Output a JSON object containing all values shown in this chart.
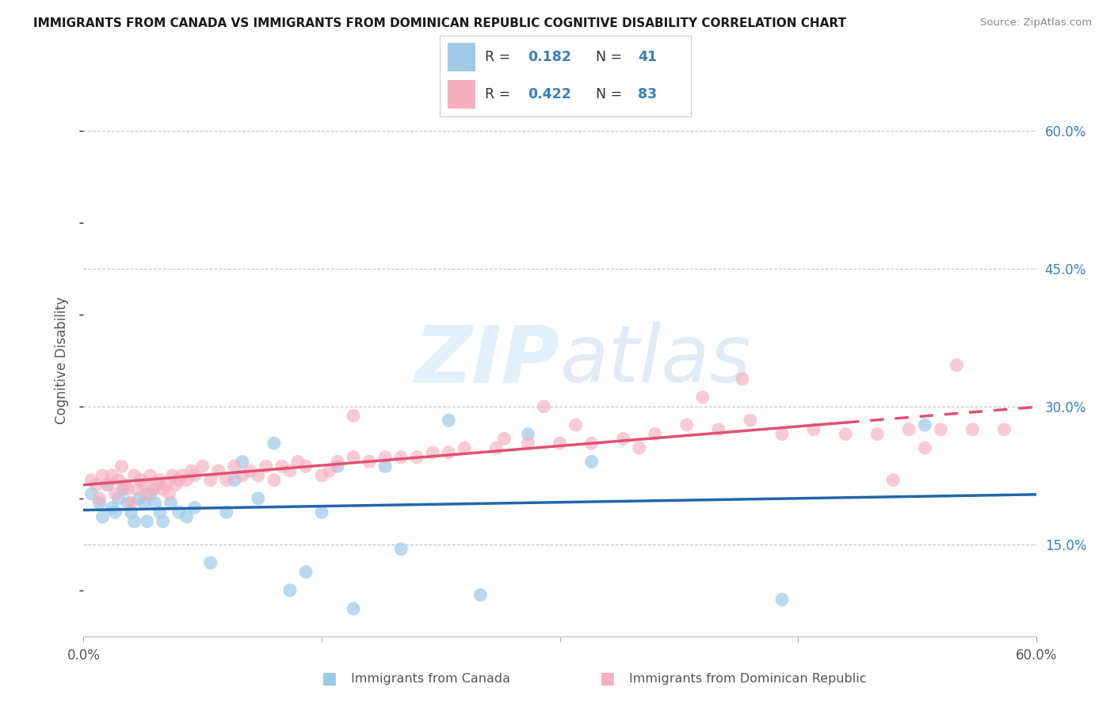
{
  "title": "IMMIGRANTS FROM CANADA VS IMMIGRANTS FROM DOMINICAN REPUBLIC COGNITIVE DISABILITY CORRELATION CHART",
  "source": "Source: ZipAtlas.com",
  "ylabel": "Cognitive Disability",
  "xlim": [
    0.0,
    0.6
  ],
  "ylim": [
    0.05,
    0.65
  ],
  "r_canada": 0.182,
  "n_canada": 41,
  "r_dr": 0.422,
  "n_dr": 83,
  "color_canada": "#9ecae8",
  "color_dr": "#f4afc0",
  "line_color_canada": "#2166ac",
  "line_color_dr": "#e05070",
  "background_color": "#ffffff",
  "grid_color": "#c0c0c0",
  "yticks": [
    0.15,
    0.3,
    0.45,
    0.6
  ],
  "ytick_labels": [
    "15.0%",
    "30.0%",
    "45.0%",
    "60.0%"
  ],
  "canada_x": [
    0.005,
    0.01,
    0.012,
    0.015,
    0.018,
    0.02,
    0.022,
    0.025,
    0.028,
    0.03,
    0.032,
    0.035,
    0.038,
    0.04,
    0.042,
    0.045,
    0.048,
    0.05,
    0.055,
    0.06,
    0.065,
    0.07,
    0.08,
    0.09,
    0.095,
    0.1,
    0.11,
    0.12,
    0.13,
    0.14,
    0.15,
    0.16,
    0.17,
    0.19,
    0.2,
    0.23,
    0.25,
    0.28,
    0.32,
    0.44,
    0.53
  ],
  "canada_y": [
    0.205,
    0.195,
    0.18,
    0.215,
    0.19,
    0.185,
    0.2,
    0.21,
    0.195,
    0.185,
    0.175,
    0.2,
    0.195,
    0.175,
    0.205,
    0.195,
    0.185,
    0.175,
    0.195,
    0.185,
    0.18,
    0.19,
    0.13,
    0.185,
    0.22,
    0.24,
    0.2,
    0.26,
    0.1,
    0.12,
    0.185,
    0.235,
    0.08,
    0.235,
    0.145,
    0.285,
    0.095,
    0.27,
    0.24,
    0.09,
    0.28
  ],
  "dr_x": [
    0.005,
    0.008,
    0.01,
    0.012,
    0.015,
    0.018,
    0.02,
    0.022,
    0.024,
    0.026,
    0.028,
    0.03,
    0.032,
    0.034,
    0.036,
    0.038,
    0.04,
    0.042,
    0.044,
    0.046,
    0.048,
    0.05,
    0.052,
    0.054,
    0.056,
    0.058,
    0.06,
    0.062,
    0.065,
    0.068,
    0.07,
    0.075,
    0.08,
    0.085,
    0.09,
    0.095,
    0.1,
    0.105,
    0.11,
    0.115,
    0.12,
    0.125,
    0.13,
    0.135,
    0.14,
    0.15,
    0.155,
    0.16,
    0.17,
    0.18,
    0.19,
    0.2,
    0.21,
    0.22,
    0.23,
    0.24,
    0.26,
    0.28,
    0.3,
    0.32,
    0.34,
    0.36,
    0.38,
    0.4,
    0.42,
    0.44,
    0.46,
    0.48,
    0.5,
    0.52,
    0.54,
    0.56,
    0.58,
    0.39,
    0.415,
    0.35,
    0.29,
    0.17,
    0.265,
    0.31,
    0.55,
    0.53,
    0.51
  ],
  "dr_y": [
    0.22,
    0.215,
    0.2,
    0.225,
    0.215,
    0.225,
    0.205,
    0.22,
    0.235,
    0.215,
    0.21,
    0.195,
    0.225,
    0.21,
    0.22,
    0.215,
    0.205,
    0.225,
    0.21,
    0.215,
    0.22,
    0.21,
    0.215,
    0.205,
    0.225,
    0.215,
    0.22,
    0.225,
    0.22,
    0.23,
    0.225,
    0.235,
    0.22,
    0.23,
    0.22,
    0.235,
    0.225,
    0.23,
    0.225,
    0.235,
    0.22,
    0.235,
    0.23,
    0.24,
    0.235,
    0.225,
    0.23,
    0.24,
    0.245,
    0.24,
    0.245,
    0.245,
    0.245,
    0.25,
    0.25,
    0.255,
    0.255,
    0.26,
    0.26,
    0.26,
    0.265,
    0.27,
    0.28,
    0.275,
    0.285,
    0.27,
    0.275,
    0.27,
    0.27,
    0.275,
    0.275,
    0.275,
    0.275,
    0.31,
    0.33,
    0.255,
    0.3,
    0.29,
    0.265,
    0.28,
    0.345,
    0.255,
    0.22
  ],
  "watermark_zip": "ZIP",
  "watermark_atlas": "atlas"
}
